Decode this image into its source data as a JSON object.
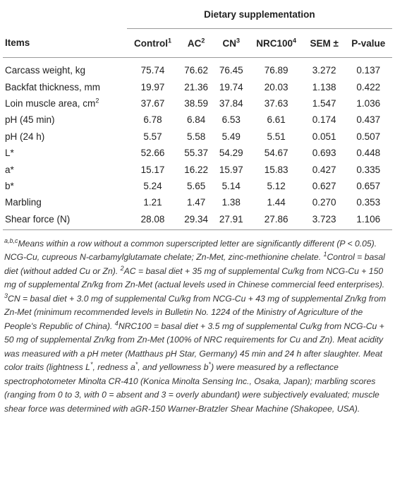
{
  "table": {
    "group_title": "Dietary supplementation",
    "columns": [
      {
        "text": "Items"
      },
      {
        "text": "Control",
        "sup": "1"
      },
      {
        "text": "AC",
        "sup": "2"
      },
      {
        "text": "CN",
        "sup": "3"
      },
      {
        "text": "NRC100",
        "sup": "4"
      },
      {
        "text": "SEM ±"
      },
      {
        "text": "P-value"
      }
    ],
    "rows": [
      {
        "label": "Carcass weight, kg",
        "values": [
          "75.74",
          "76.62",
          "76.45",
          "76.89",
          "3.272",
          "0.137"
        ]
      },
      {
        "label": "Backfat thickness, mm",
        "values": [
          "19.97",
          "21.36",
          "19.74",
          "20.03",
          "1.138",
          "0.422"
        ]
      },
      {
        "label": "Loin muscle area, cm",
        "sup": "2",
        "values": [
          "37.67",
          "38.59",
          "37.84",
          "37.63",
          "1.547",
          "1.036"
        ]
      },
      {
        "label": "pH (45 min)",
        "values": [
          "6.78",
          "6.84",
          "6.53",
          "6.61",
          "0.174",
          "0.437"
        ]
      },
      {
        "label": "pH (24 h)",
        "values": [
          "5.57",
          "5.58",
          "5.49",
          "5.51",
          "0.051",
          "0.507"
        ]
      },
      {
        "label": "L*",
        "values": [
          "52.66",
          "55.37",
          "54.29",
          "54.67",
          "0.693",
          "0.448"
        ]
      },
      {
        "label": "a*",
        "values": [
          "15.17",
          "16.22",
          "15.97",
          "15.83",
          "0.427",
          "0.335"
        ]
      },
      {
        "label": "b*",
        "values": [
          "5.24",
          "5.65",
          "5.14",
          "5.12",
          "0.627",
          "0.657"
        ]
      },
      {
        "label": "Marbling",
        "values": [
          "1.21",
          "1.47",
          "1.38",
          "1.44",
          "0.270",
          "0.353"
        ]
      },
      {
        "label": "Shear force (N)",
        "values": [
          "28.08",
          "29.34",
          "27.91",
          "27.86",
          "3.723",
          "1.106"
        ]
      }
    ]
  },
  "footnote": [
    {
      "sup": "a,b,c"
    },
    "Means within a row without a common superscripted letter are significantly different (P < 0.05). NCG-Cu, cupreous N-carbamylglutamate chelate; Zn-Met, zinc-methionine chelate. ",
    {
      "sup": "1"
    },
    "Control = basal diet (without added Cu or Zn). ",
    {
      "sup": "2"
    },
    "AC = basal diet + 35 mg of supplemental Cu/kg from NCG-Cu + 150 mg of supplemental Zn/kg from Zn-Met (actual levels used in Chinese commercial feed enterprises). ",
    {
      "sup": "3"
    },
    "CN = basal diet + 3.0 mg of supplemental Cu/kg from NCG-Cu + 43 mg of supplemental Zn/kg from Zn-Met (minimum recommended levels in Bulletin No. 1224 of the Ministry of Agriculture of the People's Republic of China). ",
    {
      "sup": "4"
    },
    "NRC100 = basal diet + 3.5 mg of supplemental Cu/kg from NCG-Cu + 50 mg of supplemental Zn/kg from Zn-Met (100% of NRC requirements for Cu and Zn). Meat acidity was measured with a pH meter (Matthaus pH Star, Germany) 45 min and 24 h after slaughter. Meat color traits (lightness L",
    {
      "sup": "*"
    },
    ", redness a",
    {
      "sup": "*"
    },
    ", and yellowness b",
    {
      "sup": "*"
    },
    ") were measured by a reflectance spectrophotometer Minolta CR-410 (Konica Minolta Sensing Inc., Osaka, Japan); marbling scores (ranging from 0 to 3, with 0 = absent and 3 = overly abundant) were subjectively evaluated; muscle shear force was determined with aGR-150 Warner-Bratzler Shear Machine (Shakopee, USA)."
  ]
}
